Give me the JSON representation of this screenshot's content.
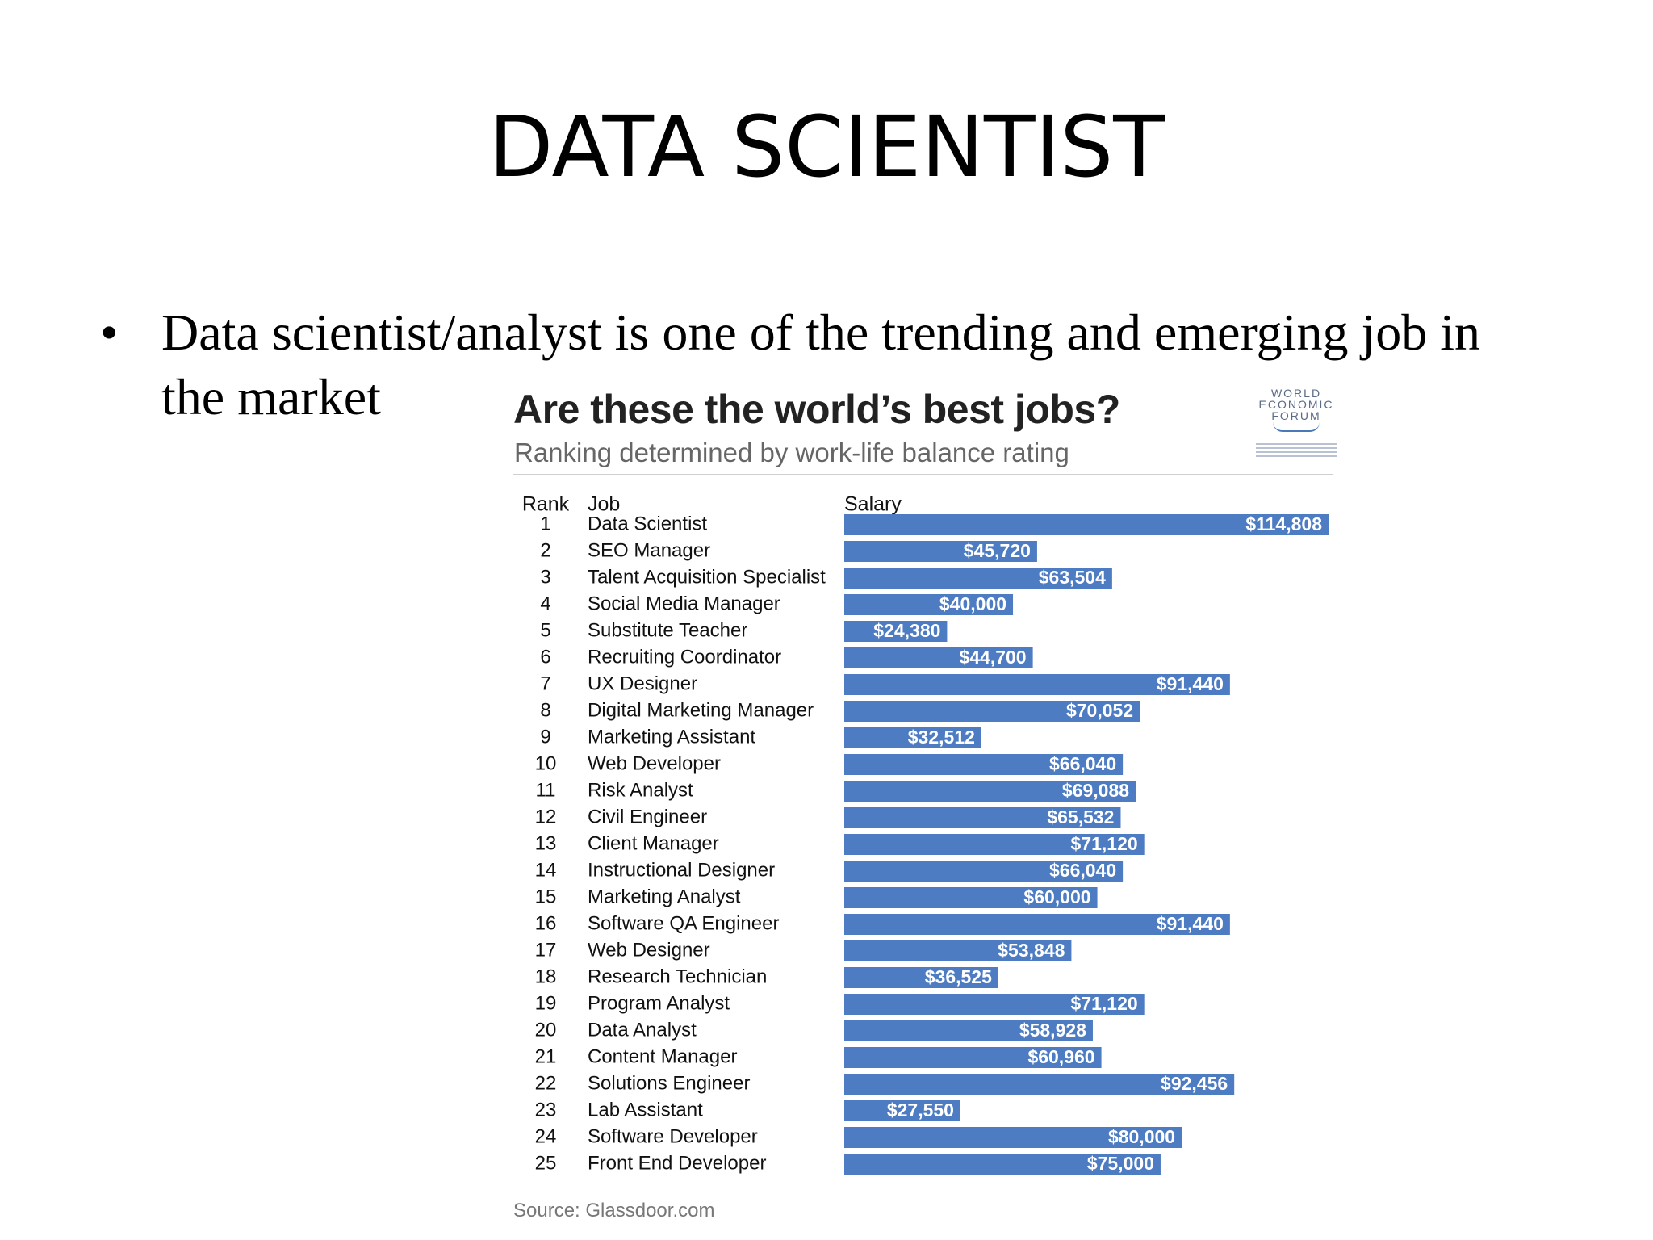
{
  "slide": {
    "title": "DATA SCIENTIST",
    "bullet": "Data scientist/analyst is one of the trending and emerging job in the market"
  },
  "logo": {
    "line1": "WORLD",
    "line2": "ECONOMIC",
    "line3": "FORUM"
  },
  "colors": {
    "bar": "#4d7cc2",
    "bar_label": "#ffffff",
    "text": "#111111"
  },
  "chart_data": {
    "type": "bar",
    "orientation": "horizontal",
    "title": "Are these the world’s best jobs?",
    "subtitle": "Ranking determined by work-life balance rating",
    "columns": [
      "Rank",
      "Job",
      "Salary"
    ],
    "source": "Source: Glassdoor.com",
    "rows": [
      {
        "rank": "1",
        "job": "Data Scientist",
        "value": 114808,
        "label": "$114,808"
      },
      {
        "rank": "2",
        "job": "SEO Manager",
        "value": 45720,
        "label": "$45,720"
      },
      {
        "rank": "3",
        "job": "Talent Acquisition Specialist",
        "value": 63504,
        "label": "$63,504"
      },
      {
        "rank": "4",
        "job": "Social Media Manager",
        "value": 40000,
        "label": "$40,000"
      },
      {
        "rank": "5",
        "job": "Substitute Teacher",
        "value": 24380,
        "label": "$24,380"
      },
      {
        "rank": "6",
        "job": "Recruiting Coordinator",
        "value": 44700,
        "label": "$44,700"
      },
      {
        "rank": "7",
        "job": "UX Designer",
        "value": 91440,
        "label": "$91,440"
      },
      {
        "rank": "8",
        "job": "Digital Marketing Manager",
        "value": 70052,
        "label": "$70,052"
      },
      {
        "rank": "9",
        "job": "Marketing Assistant",
        "value": 32512,
        "label": "$32,512"
      },
      {
        "rank": "10",
        "job": "Web Developer",
        "value": 66040,
        "label": "$66,040"
      },
      {
        "rank": "11",
        "job": "Risk Analyst",
        "value": 69088,
        "label": "$69,088"
      },
      {
        "rank": "12",
        "job": "Civil Engineer",
        "value": 65532,
        "label": "$65,532"
      },
      {
        "rank": "13",
        "job": "Client Manager",
        "value": 71120,
        "label": "$71,120"
      },
      {
        "rank": "14",
        "job": "Instructional Designer",
        "value": 66040,
        "label": "$66,040"
      },
      {
        "rank": "15",
        "job": "Marketing Analyst",
        "value": 60000,
        "label": "$60,000"
      },
      {
        "rank": "16",
        "job": "Software QA Engineer",
        "value": 91440,
        "label": "$91,440"
      },
      {
        "rank": "17",
        "job": "Web Designer",
        "value": 53848,
        "label": "$53,848"
      },
      {
        "rank": "18",
        "job": "Research Technician",
        "value": 36525,
        "label": "$36,525"
      },
      {
        "rank": "19",
        "job": "Program Analyst",
        "value": 71120,
        "label": "$71,120"
      },
      {
        "rank": "20",
        "job": "Data Analyst",
        "value": 58928,
        "label": "$58,928"
      },
      {
        "rank": "21",
        "job": "Content Manager",
        "value": 60960,
        "label": "$60,960"
      },
      {
        "rank": "22",
        "job": "Solutions Engineer",
        "value": 92456,
        "label": "$92,456"
      },
      {
        "rank": "23",
        "job": "Lab Assistant",
        "value": 27550,
        "label": "$27,550"
      },
      {
        "rank": "24",
        "job": "Software Developer",
        "value": 80000,
        "label": "$80,000"
      },
      {
        "rank": "25",
        "job": "Front End Developer",
        "value": 75000,
        "label": "$75,000"
      }
    ]
  }
}
